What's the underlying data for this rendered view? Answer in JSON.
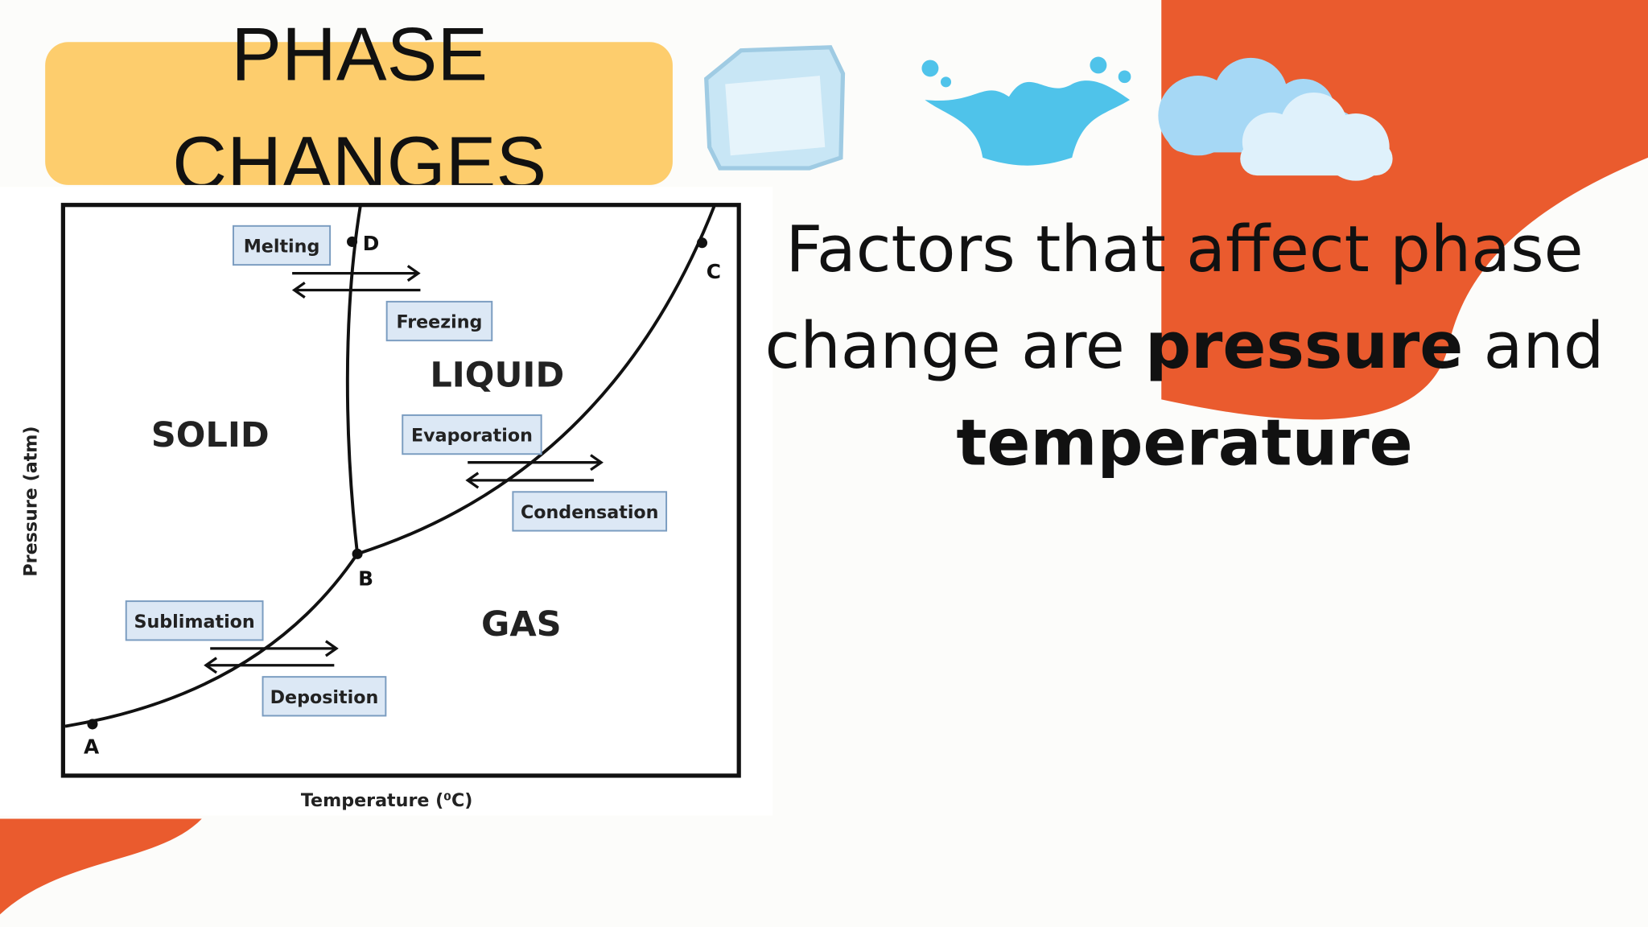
{
  "title_lines": [
    "PHASE",
    "CHANGES"
  ],
  "diagram": {
    "regions": {
      "solid": "SOLID",
      "liquid": "LIQUID",
      "gas": "GAS"
    },
    "points": {
      "a": "A",
      "b": "B",
      "c": "C",
      "d": "D"
    },
    "processes": {
      "melting": "Melting",
      "freezing": "Freezing",
      "evaporation": "Evaporation",
      "condensation": "Condensation",
      "sublimation": "Sublimation",
      "deposition": "Deposition"
    },
    "x_label": "Temperature (⁰C)",
    "y_label": "Pressure (atm)"
  },
  "text": {
    "lines": [
      [
        {
          "text": "Factors that affect phase",
          "bold": false
        }
      ],
      [
        {
          "text": "change are",
          "bold": false
        },
        {
          "text": "pressure",
          "bold": true
        },
        {
          "text": "and",
          "bold": false
        }
      ],
      [
        {
          "text": "temperature",
          "bold": true
        }
      ]
    ]
  }
}
